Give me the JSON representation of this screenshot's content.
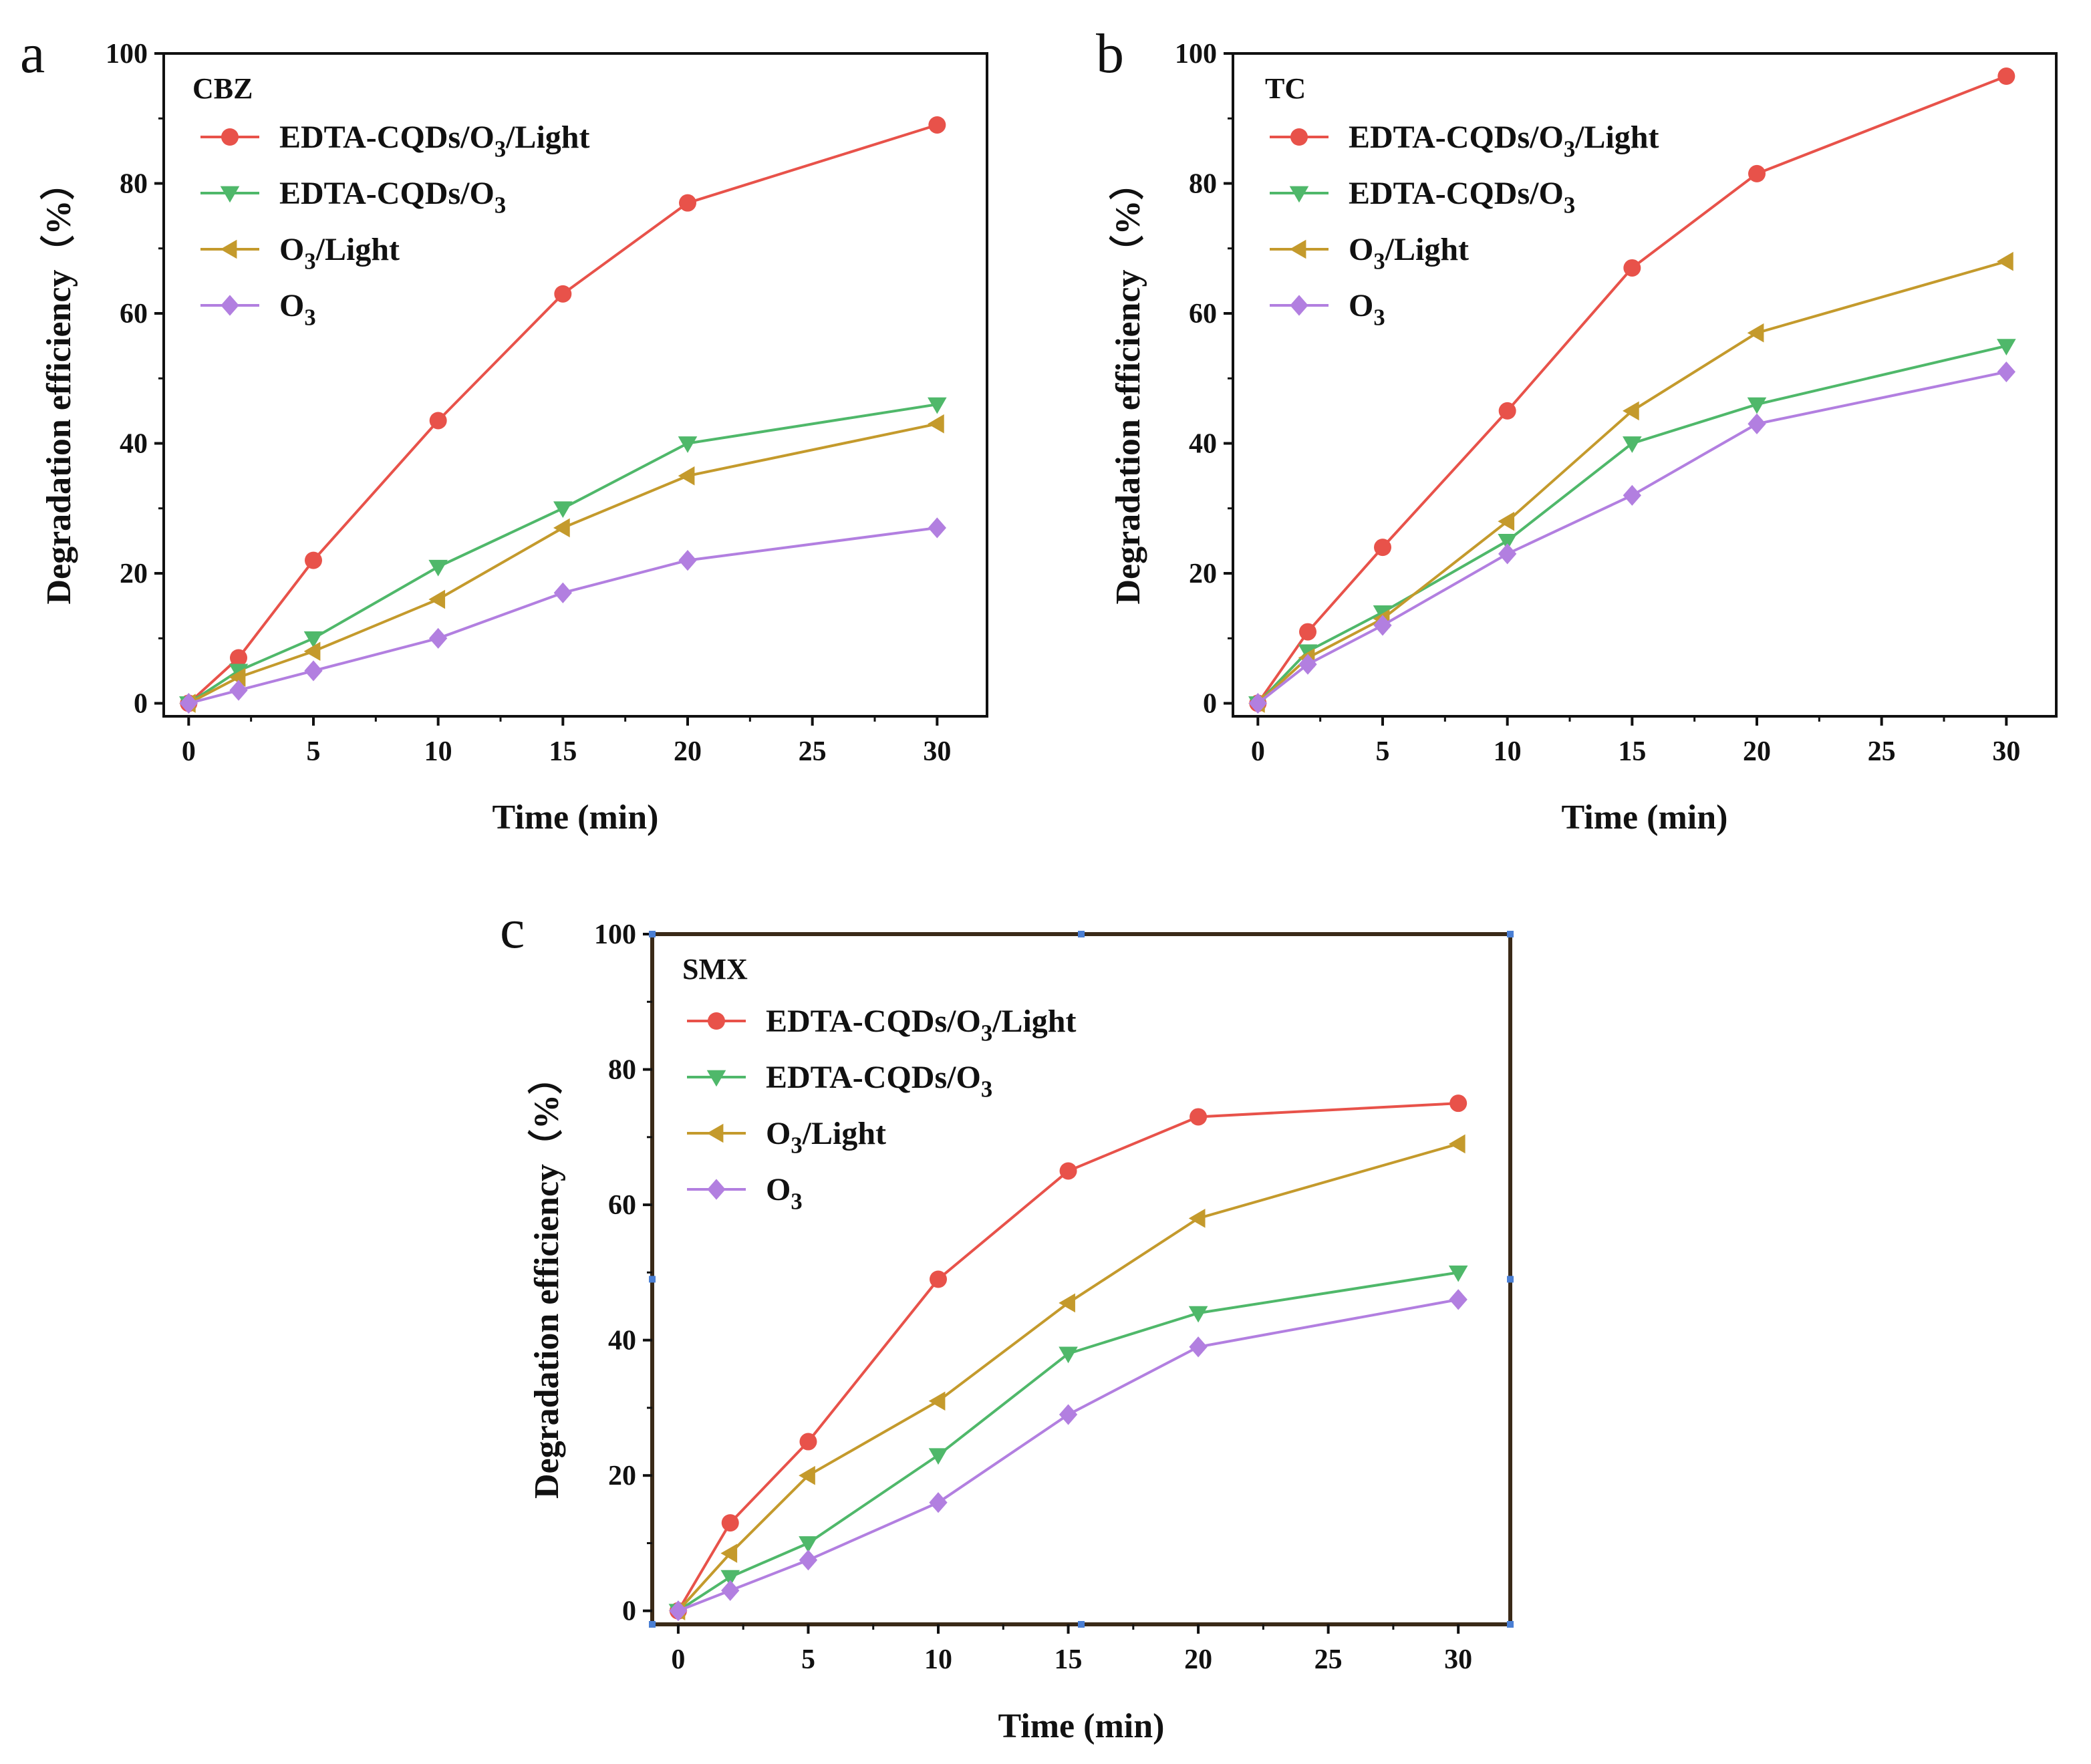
{
  "chart_data": [
    {
      "type": "line",
      "panel_label": "a",
      "title": "CBZ",
      "xlabel": "Time (min)",
      "ylabel": "Degradation efficiency（%）",
      "xlim": [
        -1,
        32
      ],
      "ylim": [
        -2,
        100
      ],
      "xticks": [
        "0",
        "5",
        "10",
        "15",
        "20",
        "25",
        "30"
      ],
      "yticks": [
        "0",
        "20",
        "40",
        "60",
        "80",
        "100"
      ],
      "x": [
        0,
        2,
        5,
        10,
        15,
        20,
        30
      ],
      "legend_position": "top-left",
      "series": [
        {
          "name": "EDTA-CQDs/O3/Light",
          "marker": "circle",
          "color": "#e8524a",
          "values": [
            0,
            7,
            22,
            43.5,
            63,
            77,
            89
          ]
        },
        {
          "name": "EDTA-CQDs/O3",
          "marker": "triangle-down",
          "color": "#4fb86a",
          "values": [
            0,
            5,
            10,
            21,
            30,
            40,
            46
          ]
        },
        {
          "name": "O3/Light",
          "marker": "triangle-left",
          "color": "#c49a2c",
          "values": [
            0,
            4,
            8,
            16,
            27,
            35,
            43
          ]
        },
        {
          "name": "O3",
          "marker": "diamond",
          "color": "#b27fe0",
          "values": [
            0,
            2,
            5,
            10,
            17,
            22,
            27
          ]
        }
      ]
    },
    {
      "type": "line",
      "panel_label": "b",
      "title": "TC",
      "xlabel": "Time (min)",
      "ylabel": "Degradation efficiency（%）",
      "xlim": [
        -1,
        32
      ],
      "ylim": [
        -2,
        100
      ],
      "xticks": [
        "0",
        "5",
        "10",
        "15",
        "20",
        "25",
        "30"
      ],
      "yticks": [
        "0",
        "20",
        "40",
        "60",
        "80",
        "100"
      ],
      "x": [
        0,
        2,
        5,
        10,
        15,
        20,
        30
      ],
      "legend_position": "top-left",
      "series": [
        {
          "name": "EDTA-CQDs/O3/Light",
          "marker": "circle",
          "color": "#e8524a",
          "values": [
            0,
            11,
            24,
            45,
            67,
            81.5,
            96.5
          ]
        },
        {
          "name": "EDTA-CQDs/O3",
          "marker": "triangle-down",
          "color": "#4fb86a",
          "values": [
            0,
            8,
            14,
            25,
            40,
            46,
            55
          ]
        },
        {
          "name": "O3/Light",
          "marker": "triangle-left",
          "color": "#c49a2c",
          "values": [
            0,
            7,
            13,
            28,
            45,
            57,
            68
          ]
        },
        {
          "name": "O3",
          "marker": "diamond",
          "color": "#b27fe0",
          "values": [
            0,
            6,
            12,
            23,
            32,
            43,
            51
          ]
        }
      ]
    },
    {
      "type": "line",
      "panel_label": "c",
      "title": "SMX",
      "xlabel": "Time (min)",
      "ylabel": "Degradation efficiency（%）",
      "xlim": [
        -1,
        32
      ],
      "ylim": [
        -2,
        100
      ],
      "xticks": [
        "0",
        "5",
        "10",
        "15",
        "20",
        "25",
        "30"
      ],
      "yticks": [
        "0",
        "20",
        "40",
        "60",
        "80",
        "100"
      ],
      "x": [
        0,
        2,
        5,
        10,
        15,
        20,
        30
      ],
      "legend_position": "top-left",
      "series": [
        {
          "name": "EDTA-CQDs/O3/Light",
          "marker": "circle",
          "color": "#e8524a",
          "values": [
            0,
            13,
            25,
            49,
            65,
            73,
            75
          ]
        },
        {
          "name": "EDTA-CQDs/O3",
          "marker": "triangle-down",
          "color": "#4fb86a",
          "values": [
            0,
            5,
            10,
            23,
            38,
            44,
            50
          ]
        },
        {
          "name": "O3/Light",
          "marker": "triangle-left",
          "color": "#c49a2c",
          "values": [
            0,
            8.5,
            20,
            31,
            45.5,
            58,
            69
          ]
        },
        {
          "name": "O3",
          "marker": "diamond",
          "color": "#b27fe0",
          "values": [
            0,
            3,
            7.5,
            16,
            29,
            39,
            46
          ]
        }
      ]
    }
  ]
}
